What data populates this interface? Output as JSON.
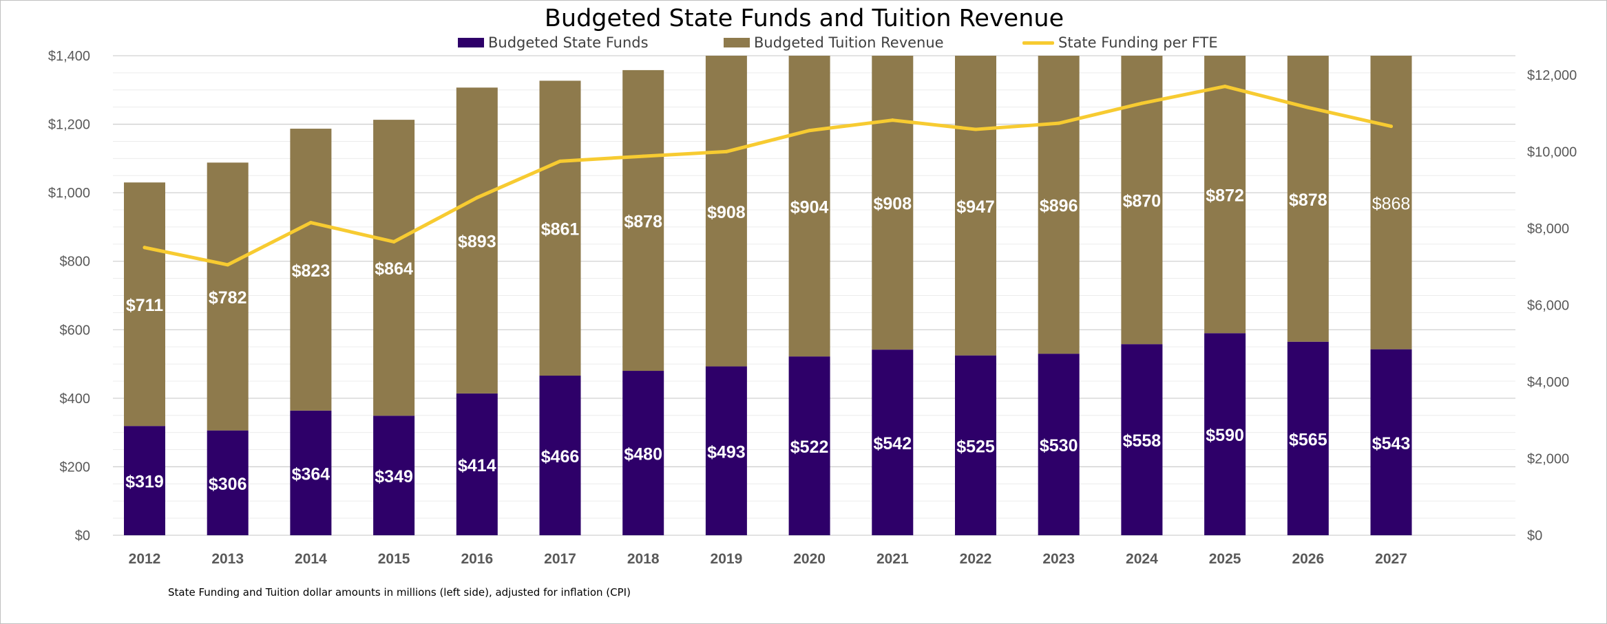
{
  "title": "Budgeted State Funds and Tuition Revenue",
  "legend": [
    {
      "label": "Budgeted State Funds",
      "kind": "box",
      "color": "#2e0069"
    },
    {
      "label": "Budgeted Tuition Revenue",
      "kind": "box",
      "color": "#8e7a4c"
    },
    {
      "label": "State Funding per FTE",
      "kind": "line",
      "color": "#f7cb31"
    }
  ],
  "footnote": "State Funding and Tuition dollar amounts in millions (left side), adjusted for inflation (CPI)",
  "chart_data": {
    "type": "bar",
    "stacked": true,
    "combo_line": true,
    "categories": [
      "2012",
      "2013",
      "2014",
      "2015",
      "2016",
      "2017",
      "2018",
      "2019",
      "2020",
      "2021",
      "2022",
      "2023",
      "2024",
      "2025",
      "2026",
      "2027"
    ],
    "series": [
      {
        "name": "Budgeted State Funds",
        "type": "bar",
        "axis": "left",
        "color": "#2e0069",
        "values": [
          319,
          306,
          364,
          349,
          414,
          466,
          480,
          493,
          522,
          542,
          525,
          530,
          558,
          590,
          565,
          543
        ],
        "labels": [
          "$319",
          "$306",
          "$364",
          "$349",
          "$414",
          "$466",
          "$480",
          "$493",
          "$522",
          "$542",
          "$525",
          "$530",
          "$558",
          "$590",
          "$565",
          "$543"
        ]
      },
      {
        "name": "Budgeted Tuition Revenue",
        "type": "bar",
        "axis": "left",
        "color": "#8e7a4c",
        "values": [
          711,
          782,
          823,
          864,
          893,
          861,
          878,
          908,
          904,
          908,
          947,
          896,
          870,
          872,
          878,
          868
        ],
        "labels": [
          "$711",
          "$782",
          "$823",
          "$864",
          "$893",
          "$861",
          "$878",
          "$908",
          "$904",
          "$908",
          "$947",
          "$896",
          "$870",
          "$872",
          "$878",
          "$868"
        ]
      },
      {
        "name": "State Funding per FTE",
        "type": "line",
        "axis": "right",
        "color": "#f7cb31",
        "values": [
          7500,
          7050,
          8150,
          7650,
          8800,
          9750,
          9880,
          10000,
          10550,
          10820,
          10580,
          10740,
          11260,
          11700,
          11150,
          10660
        ]
      }
    ],
    "left_axis": {
      "ylim": [
        0,
        1400
      ],
      "ticks": [
        0,
        200,
        400,
        600,
        800,
        1000,
        1200,
        1400
      ],
      "tick_labels": [
        "$0",
        "$200",
        "$400",
        "$600",
        "$800",
        "$1,000",
        "$1,200",
        "$1,400"
      ]
    },
    "right_axis": {
      "ylim": [
        0,
        12500
      ],
      "ticks": [
        0,
        2000,
        4000,
        6000,
        8000,
        10000,
        12000
      ],
      "tick_labels": [
        "$0",
        "$2,000",
        "$4,000",
        "$6,000",
        "$8,000",
        "$10,000",
        "$12,000"
      ]
    },
    "grid": true,
    "legend_position": "top"
  }
}
